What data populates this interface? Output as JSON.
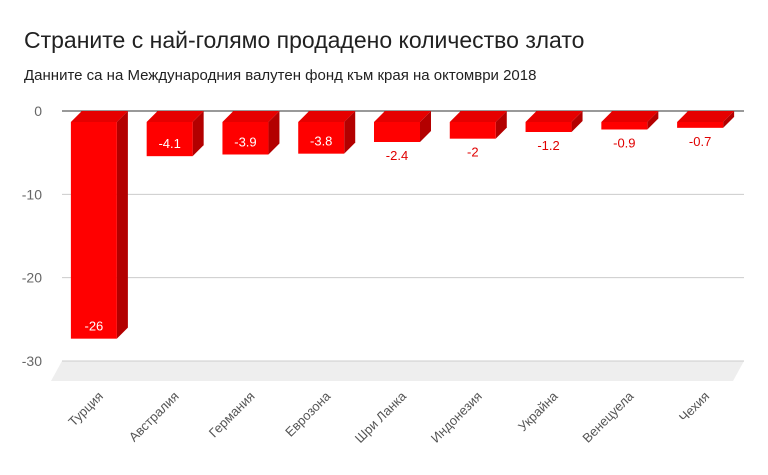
{
  "chart_data": {
    "type": "bar",
    "title": "Страните с най-голямо продадено количество злато",
    "subtitle": "Данните са на Международния валутен фонд към края на октомври 2018",
    "categories": [
      "Турция",
      "Австралия",
      "Германия",
      "Еврозона",
      "Шри Ланка",
      "Индонезия",
      "Украйна",
      "Венецуела",
      "Чехия"
    ],
    "values": [
      -26,
      -4.1,
      -3.9,
      -3.8,
      -2.4,
      -2,
      -1.2,
      -0.9,
      -0.7
    ],
    "data_labels": [
      "-26",
      "-4.1",
      "-3.9",
      "-3.8",
      "-2.4",
      "-2",
      "-1.2",
      "-0.9",
      "-0.7"
    ],
    "y_ticks": [
      0,
      -10,
      -20,
      -30
    ],
    "ylim": [
      -30,
      0
    ],
    "xlabel": "",
    "ylabel": "",
    "grid": true,
    "style": "3d",
    "colors": {
      "bar_front": "#ff0000",
      "bar_side": "#b30000",
      "bar_top": "#e60000",
      "grid": "#cccccc",
      "floor": "#eeeeee"
    }
  }
}
